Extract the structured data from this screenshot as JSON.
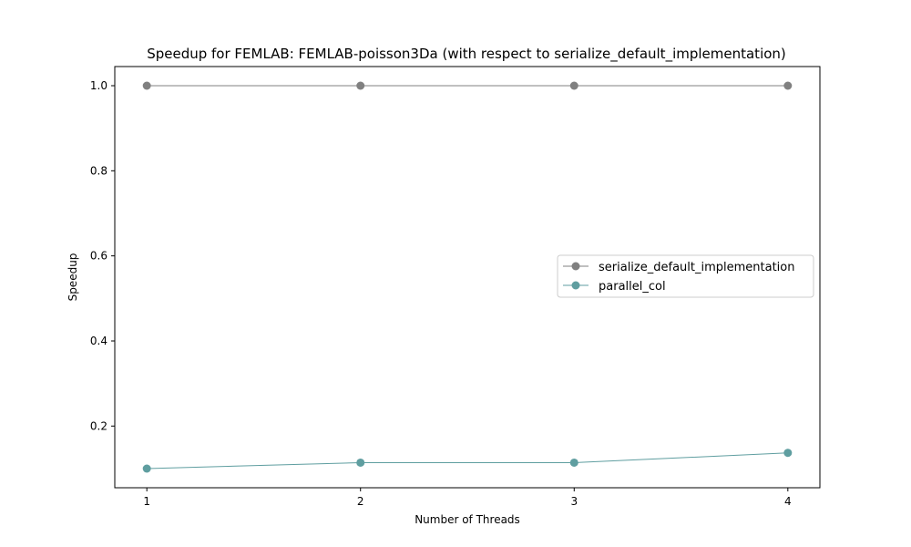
{
  "chart_data": {
    "type": "line",
    "title": "Speedup for FEMLAB: FEMLAB-poisson3Da (with respect to serialize_default_implementation)",
    "xlabel": "Number of Threads",
    "ylabel": "Speedup",
    "x": [
      1,
      2,
      3,
      4
    ],
    "x_ticks": [
      "1",
      "2",
      "3",
      "4"
    ],
    "y_ticks": [
      "0.2",
      "0.4",
      "0.6",
      "0.8",
      "1.0"
    ],
    "xlim": [
      0.85,
      4.15
    ],
    "ylim": [
      0.055,
      1.045
    ],
    "grid": false,
    "legend_position": "center-right",
    "series": [
      {
        "name": "serialize_default_implementation",
        "values": [
          1.0,
          1.0,
          1.0,
          1.0
        ],
        "color": "#808080"
      },
      {
        "name": "parallel_col",
        "values": [
          0.1,
          0.114,
          0.114,
          0.137
        ],
        "color": "#5f9ea0"
      }
    ]
  }
}
